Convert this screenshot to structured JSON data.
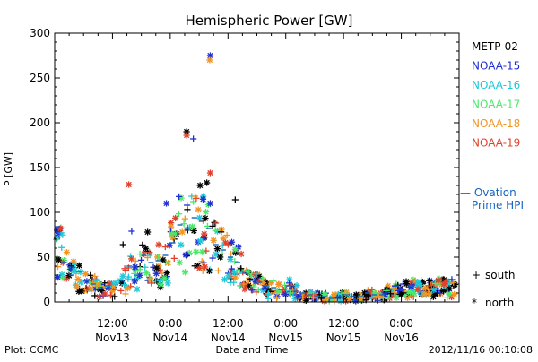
{
  "chart_data": {
    "type": "scatter",
    "title": "Hemispheric Power [GW]",
    "ylabel": "P [GW]",
    "xlabel": "Date and Time",
    "ylim": [
      0,
      300
    ],
    "y_ticks": [
      0,
      50,
      100,
      150,
      200,
      250,
      300
    ],
    "xlim_hours": [
      0,
      84
    ],
    "x_ticks": [
      {
        "hour": 12,
        "line1": "12:00",
        "line2": "Nov13"
      },
      {
        "hour": 24,
        "line1": "0:00",
        "line2": "Nov14"
      },
      {
        "hour": 36,
        "line1": "12:00",
        "line2": "Nov14"
      },
      {
        "hour": 48,
        "line1": "0:00",
        "line2": "Nov15"
      },
      {
        "hour": 60,
        "line1": "12:00",
        "line2": "Nov15"
      },
      {
        "hour": 72,
        "line1": "0:00",
        "line2": "Nov16"
      }
    ],
    "series": [
      {
        "name": "METP-02",
        "color": "#000000"
      },
      {
        "name": "NOAA-15",
        "color": "#1f2fd0"
      },
      {
        "name": "NOAA-16",
        "color": "#1ec8d8"
      },
      {
        "name": "NOAA-17",
        "color": "#4be86a"
      },
      {
        "name": "NOAA-18",
        "color": "#f29422"
      },
      {
        "name": "NOAA-19",
        "color": "#e2402a"
      }
    ],
    "ovation": {
      "label_line1": "— Ovation",
      "label_line2": "Prime HPI",
      "color": "#1565c0"
    },
    "markers": [
      {
        "symbol": "+",
        "label": "south"
      },
      {
        "symbol": "*",
        "label": "north"
      }
    ],
    "highlight_points": [
      {
        "series": "NOAA-15",
        "hour": 32.3,
        "y": 275,
        "hemi": "north"
      },
      {
        "series": "NOAA-18",
        "hour": 32.2,
        "y": 270,
        "hemi": "north"
      },
      {
        "series": "METP-02",
        "hour": 27.4,
        "y": 190,
        "hemi": "north"
      },
      {
        "series": "NOAA-19",
        "hour": 27.4,
        "y": 186,
        "hemi": "north"
      },
      {
        "series": "NOAA-15",
        "hour": 28.8,
        "y": 182,
        "hemi": "south"
      },
      {
        "series": "NOAA-19",
        "hour": 32.3,
        "y": 144,
        "hemi": "north"
      },
      {
        "series": "NOAA-19",
        "hour": 15.4,
        "y": 131,
        "hemi": "north"
      },
      {
        "series": "METP-02",
        "hour": 31.6,
        "y": 133,
        "hemi": "north"
      },
      {
        "series": "METP-02",
        "hour": 30.2,
        "y": 130,
        "hemi": "north"
      },
      {
        "series": "METP-02",
        "hour": 37.5,
        "y": 114,
        "hemi": "south"
      },
      {
        "series": "NOAA-15",
        "hour": 23.2,
        "y": 110,
        "hemi": "north"
      },
      {
        "series": "NOAA-15",
        "hour": 32.3,
        "y": 110,
        "hemi": "north"
      },
      {
        "series": "NOAA-15",
        "hour": 27.5,
        "y": 108,
        "hemi": "south"
      },
      {
        "series": "NOAA-15",
        "hour": 16.0,
        "y": 79,
        "hemi": "south"
      },
      {
        "series": "METP-02",
        "hour": 19.3,
        "y": 78,
        "hemi": "north"
      },
      {
        "series": "METP-02",
        "hour": 25.3,
        "y": 76,
        "hemi": "north"
      },
      {
        "series": "METP-02",
        "hour": 14.2,
        "y": 64,
        "hemi": "south"
      },
      {
        "series": "METP-02",
        "hour": 0.8,
        "y": 47,
        "hemi": "north"
      },
      {
        "series": "NOAA-15",
        "hour": 0.5,
        "y": 80,
        "hemi": "north"
      },
      {
        "series": "NOAA-19",
        "hour": 1.2,
        "y": 82,
        "hemi": "north"
      },
      {
        "series": "METP-02",
        "hour": 34.4,
        "y": 50,
        "hemi": "north"
      },
      {
        "series": "METP-02",
        "hour": 22.5,
        "y": 47,
        "hemi": "north"
      },
      {
        "series": "NOAA-18",
        "hour": 26.5,
        "y": 78,
        "hemi": "north"
      },
      {
        "series": "NOAA-17",
        "hour": 25.0,
        "y": 76,
        "hemi": "north"
      }
    ],
    "ovation_points": [
      {
        "hour": 0.5,
        "y": 84
      },
      {
        "hour": 2.0,
        "y": 44
      },
      {
        "hour": 3.5,
        "y": 30
      },
      {
        "hour": 5.0,
        "y": 34
      },
      {
        "hour": 6.5,
        "y": 24
      },
      {
        "hour": 8.0,
        "y": 20
      },
      {
        "hour": 9.5,
        "y": 16
      },
      {
        "hour": 11.0,
        "y": 18
      },
      {
        "hour": 12.5,
        "y": 14
      },
      {
        "hour": 14.0,
        "y": 24
      },
      {
        "hour": 15.5,
        "y": 40
      },
      {
        "hour": 17.0,
        "y": 30
      },
      {
        "hour": 18.5,
        "y": 52
      },
      {
        "hour": 20.0,
        "y": 44
      },
      {
        "hour": 21.5,
        "y": 46
      },
      {
        "hour": 23.0,
        "y": 52
      },
      {
        "hour": 24.5,
        "y": 66
      },
      {
        "hour": 26.0,
        "y": 86
      },
      {
        "hour": 27.5,
        "y": 82
      },
      {
        "hour": 29.0,
        "y": 94
      },
      {
        "hour": 30.5,
        "y": 90
      },
      {
        "hour": 32.0,
        "y": 82
      },
      {
        "hour": 33.5,
        "y": 64
      },
      {
        "hour": 35.0,
        "y": 58
      },
      {
        "hour": 36.5,
        "y": 50
      },
      {
        "hour": 38.0,
        "y": 44
      },
      {
        "hour": 39.5,
        "y": 32
      },
      {
        "hour": 41.0,
        "y": 24
      },
      {
        "hour": 42.5,
        "y": 22
      },
      {
        "hour": 44.0,
        "y": 18
      },
      {
        "hour": 45.5,
        "y": 16
      },
      {
        "hour": 47.0,
        "y": 14
      },
      {
        "hour": 48.5,
        "y": 18
      },
      {
        "hour": 50.0,
        "y": 12
      },
      {
        "hour": 51.5,
        "y": 10
      },
      {
        "hour": 53.0,
        "y": 8
      },
      {
        "hour": 54.5,
        "y": 6
      },
      {
        "hour": 56.0,
        "y": 6
      },
      {
        "hour": 57.5,
        "y": 4
      },
      {
        "hour": 59.0,
        "y": 6
      },
      {
        "hour": 60.5,
        "y": 8
      },
      {
        "hour": 62.0,
        "y": 6
      },
      {
        "hour": 63.5,
        "y": 6
      },
      {
        "hour": 65.0,
        "y": 10
      },
      {
        "hour": 66.5,
        "y": 8
      },
      {
        "hour": 68.0,
        "y": 8
      },
      {
        "hour": 69.5,
        "y": 14
      },
      {
        "hour": 71.0,
        "y": 18
      },
      {
        "hour": 72.5,
        "y": 14
      },
      {
        "hour": 74.0,
        "y": 18
      }
    ]
  },
  "footer": {
    "left": "Plot: CCMC",
    "right": "2012/11/16 00:10:08"
  }
}
